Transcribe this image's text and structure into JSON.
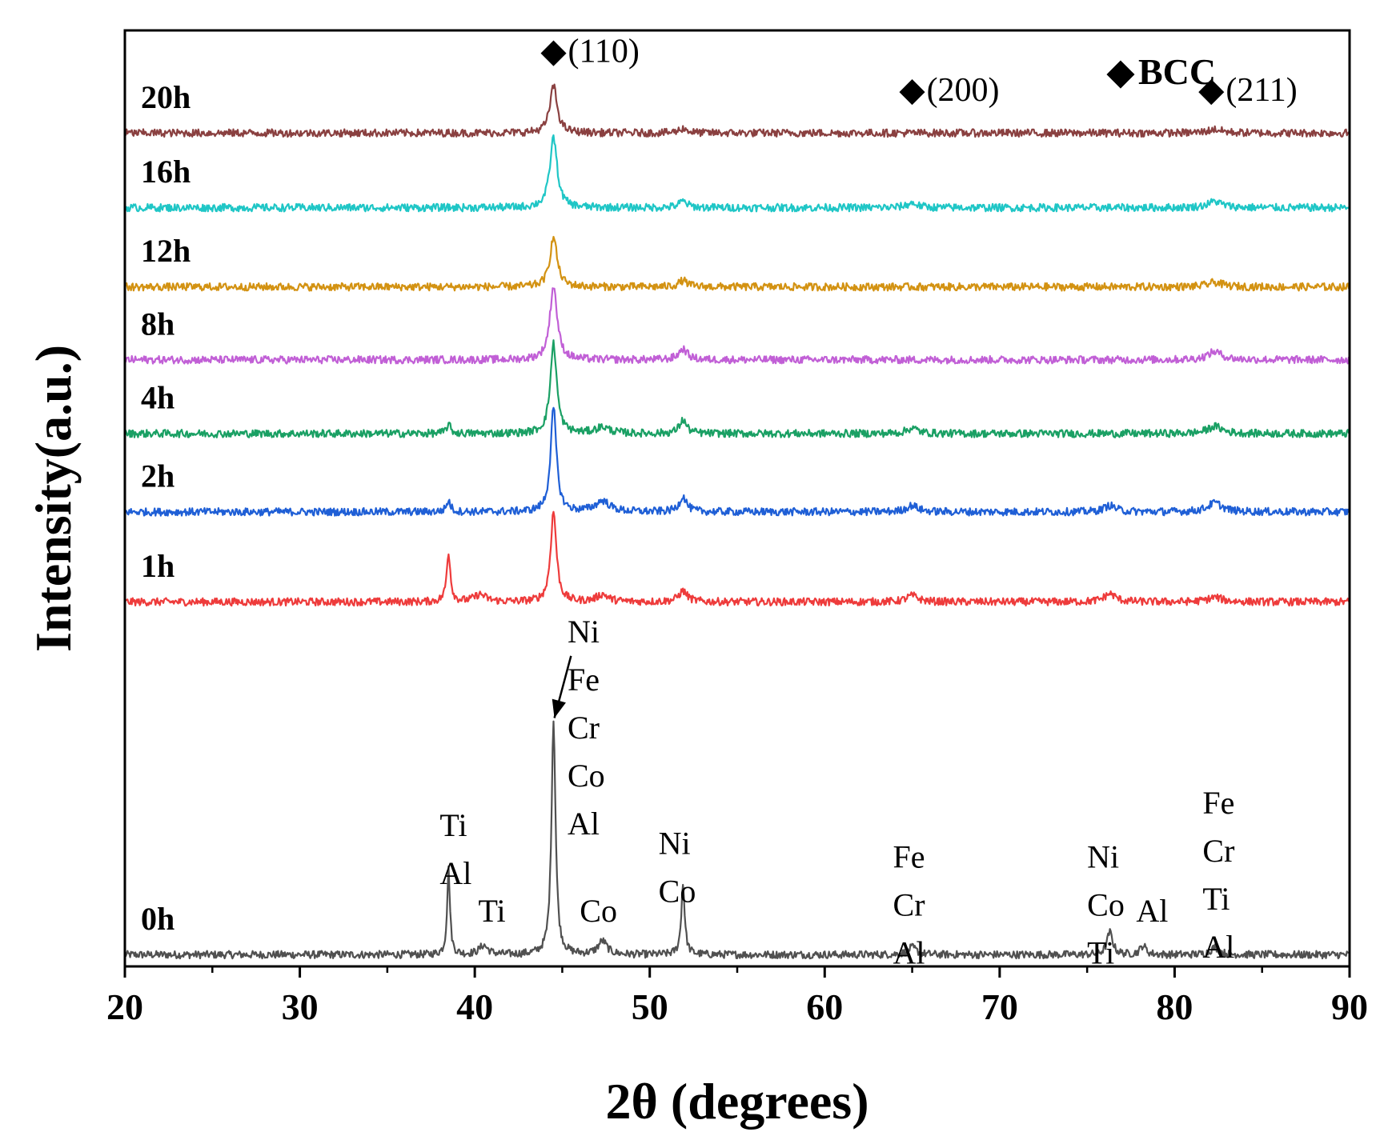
{
  "chart_data": {
    "type": "line",
    "xlabel": "2θ (degrees)",
    "ylabel": "Intensity(a.u.)",
    "xlim": [
      20,
      90
    ],
    "ylim": [
      0,
      10.4
    ],
    "xticks": [
      20,
      30,
      40,
      50,
      60,
      70,
      80,
      90
    ],
    "grid": false,
    "legend_marker": "◆",
    "legend_text": "BCC",
    "series": [
      {
        "name": "0h",
        "color": "#505050",
        "baseline": 0.13,
        "peaks": [
          [
            38.5,
            0.95,
            0.1
          ],
          [
            40.5,
            0.1,
            0.3
          ],
          [
            44.5,
            2.6,
            0.14
          ],
          [
            47.3,
            0.15,
            0.3
          ],
          [
            51.9,
            0.78,
            0.12
          ],
          [
            65.0,
            0.08,
            0.3
          ],
          [
            76.3,
            0.25,
            0.2
          ],
          [
            78.2,
            0.1,
            0.2
          ],
          [
            82.3,
            0.08,
            0.3
          ]
        ]
      },
      {
        "name": "1h",
        "color": "#ee3b3b",
        "baseline": 4.05,
        "peaks": [
          [
            38.5,
            0.55,
            0.13
          ],
          [
            40.3,
            0.08,
            0.4
          ],
          [
            44.5,
            1.0,
            0.2
          ],
          [
            47.3,
            0.08,
            0.4
          ],
          [
            51.9,
            0.12,
            0.3
          ],
          [
            65.0,
            0.07,
            0.4
          ],
          [
            76.3,
            0.09,
            0.4
          ],
          [
            82.3,
            0.05,
            0.5
          ]
        ]
      },
      {
        "name": "2h",
        "color": "#1f5fd6",
        "baseline": 5.05,
        "peaks": [
          [
            38.5,
            0.12,
            0.15
          ],
          [
            44.5,
            1.15,
            0.2
          ],
          [
            47.3,
            0.12,
            0.5
          ],
          [
            51.9,
            0.17,
            0.25
          ],
          [
            65.0,
            0.07,
            0.4
          ],
          [
            76.3,
            0.07,
            0.4
          ],
          [
            82.3,
            0.1,
            0.5
          ]
        ]
      },
      {
        "name": "4h",
        "color": "#1aa064",
        "baseline": 5.92,
        "peaks": [
          [
            38.5,
            0.1,
            0.15
          ],
          [
            44.5,
            1.0,
            0.22
          ],
          [
            47.3,
            0.07,
            0.5
          ],
          [
            51.9,
            0.15,
            0.25
          ],
          [
            65.0,
            0.06,
            0.4
          ],
          [
            82.3,
            0.08,
            0.5
          ]
        ]
      },
      {
        "name": "8h",
        "color": "#c15fd6",
        "baseline": 6.74,
        "peaks": [
          [
            44.5,
            0.82,
            0.25
          ],
          [
            51.9,
            0.12,
            0.3
          ],
          [
            82.3,
            0.09,
            0.5
          ]
        ]
      },
      {
        "name": "12h",
        "color": "#d39212",
        "baseline": 7.55,
        "peaks": [
          [
            44.5,
            0.55,
            0.25
          ],
          [
            51.9,
            0.07,
            0.3
          ],
          [
            82.3,
            0.05,
            0.5
          ]
        ]
      },
      {
        "name": "16h",
        "color": "#1fc6c6",
        "baseline": 8.43,
        "peaks": [
          [
            44.5,
            0.78,
            0.25
          ],
          [
            51.9,
            0.07,
            0.3
          ],
          [
            65.0,
            0.05,
            0.4
          ],
          [
            82.3,
            0.07,
            0.5
          ]
        ]
      },
      {
        "name": "20h",
        "color": "#8a4040",
        "baseline": 9.26,
        "peaks": [
          [
            44.5,
            0.52,
            0.25
          ],
          [
            51.9,
            0.05,
            0.3
          ],
          [
            82.3,
            0.04,
            0.5
          ]
        ]
      }
    ],
    "bcc_markers": [
      {
        "x": 44.5,
        "y": 10.05,
        "text": "(110)"
      },
      {
        "x": 65.0,
        "y": 9.62,
        "text": "(200)"
      },
      {
        "x": 82.1,
        "y": 9.62,
        "text": "(211)"
      }
    ],
    "peak_labels": [
      {
        "x": 38.0,
        "y": 1.45,
        "lines": [
          "Ti",
          "Al"
        ]
      },
      {
        "x": 40.2,
        "y": 0.5,
        "lines": [
          "Ti"
        ]
      },
      {
        "x": 45.3,
        "y": 3.6,
        "lines": [
          "Ni",
          "Fe",
          "Cr",
          "Co",
          "Al"
        ]
      },
      {
        "x": 46.0,
        "y": 0.5,
        "lines": [
          "Co"
        ]
      },
      {
        "x": 50.5,
        "y": 1.25,
        "lines": [
          "Ni",
          "Co"
        ]
      },
      {
        "x": 63.9,
        "y": 1.1,
        "lines": [
          "Fe",
          "Cr",
          "Al"
        ]
      },
      {
        "x": 75.0,
        "y": 1.1,
        "lines": [
          "Ni",
          "Co",
          "Ti"
        ]
      },
      {
        "x": 77.8,
        "y": 0.5,
        "lines": [
          "Al"
        ]
      },
      {
        "x": 81.6,
        "y": 1.7,
        "lines": [
          "Fe",
          "Cr",
          "Ti",
          "Al"
        ]
      }
    ],
    "arrow": {
      "from": [
        45.5,
        3.45
      ],
      "to": [
        44.55,
        2.76
      ]
    }
  }
}
